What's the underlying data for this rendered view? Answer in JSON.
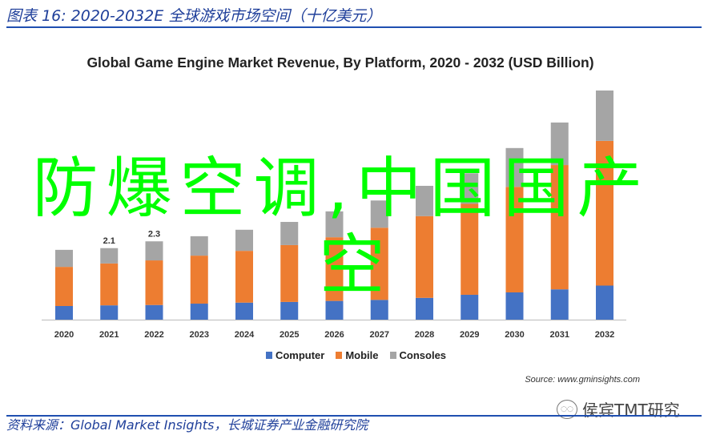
{
  "figure_title": "图表 16:  2020-2032E 全球游戏市场空间（十亿美元）",
  "footer_source": "资料来源：Global Market Insights，长城证券产业金融研究院",
  "watermark": "侯宾TMT研究",
  "overlay_text": {
    "line1": "防爆空调,中国国产",
    "line2": "空"
  },
  "chart_source": "Source: www.gminsights.com",
  "colors": {
    "computer": "#4472c4",
    "mobile": "#ed7d31",
    "consoles": "#a5a5a5",
    "accent": "#1f4fb0",
    "overlay": "#00ff00"
  },
  "chart_data": {
    "type": "bar",
    "stacked": true,
    "title": "Global Game Engine Market Revenue, By Platform, 2020 - 2032 (USD Billion)",
    "xlabel": "",
    "ylabel": "",
    "categories": [
      "2020",
      "2021",
      "2022",
      "2023",
      "2024",
      "2025",
      "2026",
      "2027",
      "2028",
      "2029",
      "2030",
      "2031",
      "2032"
    ],
    "series": [
      {
        "name": "Computer",
        "values": [
          0.4,
          0.42,
          0.43,
          0.47,
          0.5,
          0.52,
          0.55,
          0.58,
          0.64,
          0.73,
          0.8,
          0.89,
          1.0
        ]
      },
      {
        "name": "Mobile",
        "values": [
          1.15,
          1.23,
          1.31,
          1.41,
          1.52,
          1.67,
          1.87,
          2.12,
          2.4,
          2.67,
          3.1,
          3.65,
          4.25
        ]
      },
      {
        "name": "Consoles",
        "values": [
          0.5,
          0.45,
          0.56,
          0.57,
          0.62,
          0.68,
          0.76,
          0.8,
          0.89,
          0.9,
          1.14,
          1.25,
          1.48
        ]
      }
    ],
    "data_labels": [
      {
        "category": "2021",
        "text": "2.1"
      },
      {
        "category": "2022",
        "text": "2.3"
      }
    ],
    "legend": "bottom-center",
    "grid": false
  }
}
